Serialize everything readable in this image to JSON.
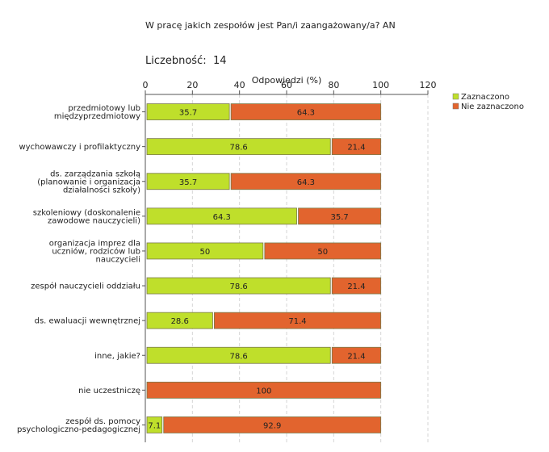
{
  "chart_data": {
    "type": "bar",
    "orientation": "horizontal",
    "stacked": true,
    "title": "W pracę jakich zespołów jest Pan/i zaangażowany/a? AN",
    "count_label": "Liczebność:",
    "count_value": "14",
    "xlabel": "Odpowiedzi (%)",
    "xlim": [
      0,
      120
    ],
    "xticks": [
      "0",
      "20",
      "40",
      "60",
      "80",
      "100",
      "120"
    ],
    "grid": true,
    "legend_position": "top-right",
    "categories": [
      [
        "przedmiotowy lub",
        "międzyprzedmiotowy"
      ],
      [
        "wychowawczy i profilaktyczny"
      ],
      [
        "ds. zarządzania szkołą",
        "(planowanie i organizacja",
        "działalności szkoły)"
      ],
      [
        "szkoleniowy (doskonalenie",
        "zawodowe nauczycieli)"
      ],
      [
        "organizacja imprez dla",
        "uczniów, rodziców lub",
        "nauczycieli"
      ],
      [
        "zespół nauczycieli oddziału"
      ],
      [
        "ds. ewaluacji wewnętrznej"
      ],
      [
        "inne, jakie?"
      ],
      [
        "nie uczestniczę"
      ],
      [
        "zespół ds. pomocy",
        "psychologiczno-pedagogicznej"
      ]
    ],
    "series": [
      {
        "name": "Zaznaczono",
        "color": "#bfdf2b",
        "values": [
          35.7,
          78.6,
          35.7,
          64.3,
          50,
          78.6,
          28.6,
          78.6,
          0,
          7.1
        ],
        "labels": [
          "35.7",
          "78.6",
          "35.7",
          "64.3",
          "50",
          "78.6",
          "28.6",
          "78.6",
          "",
          "7.1"
        ]
      },
      {
        "name": "Nie zaznaczono",
        "color": "#e2642e",
        "values": [
          64.3,
          21.4,
          64.3,
          35.7,
          50,
          21.4,
          71.4,
          21.4,
          100,
          92.9
        ],
        "labels": [
          "64.3",
          "21.4",
          "64.3",
          "35.7",
          "50",
          "21.4",
          "71.4",
          "21.4",
          "100",
          "92.9"
        ]
      }
    ]
  }
}
